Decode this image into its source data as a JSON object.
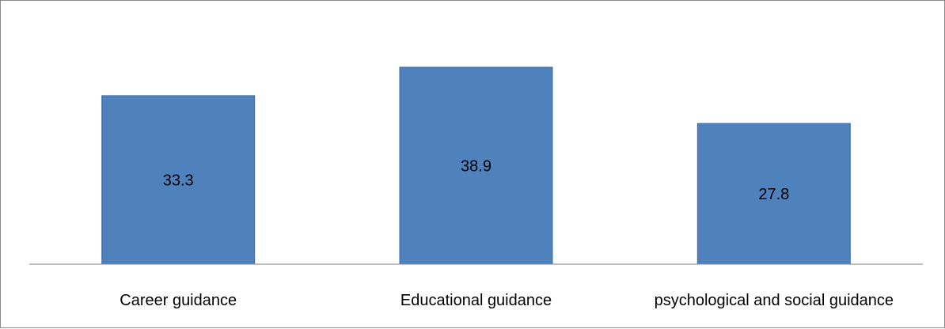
{
  "chart_data": {
    "type": "bar",
    "categories": [
      "Career guidance",
      "Educational guidance",
      "psychological and social guidance"
    ],
    "values": [
      33.3,
      38.9,
      27.8
    ],
    "data_labels": [
      "33.3",
      "38.9",
      "27.8"
    ],
    "title": "",
    "xlabel": "",
    "ylabel": "",
    "ylim": [
      0,
      45
    ],
    "grid": false,
    "legend": "none",
    "colors": {
      "bar": "#4f81bd",
      "bar_edge": "#3b6ea5",
      "axis": "#868686",
      "border": "#8c8c8c"
    }
  }
}
